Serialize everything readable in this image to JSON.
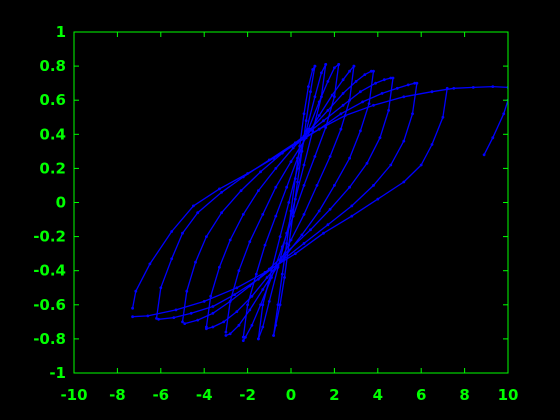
{
  "colors": {
    "background": "#000000",
    "axes": "#00ff00",
    "series": "#0000ff"
  },
  "chart_data": {
    "type": "line",
    "title": "",
    "xlabel": "",
    "ylabel": "",
    "xlim": [
      -10,
      10
    ],
    "ylim": [
      -1,
      1
    ],
    "xticks": [
      -10,
      -8,
      -6,
      -4,
      -2,
      0,
      2,
      4,
      6,
      8,
      10
    ],
    "yticks": [
      -1,
      -0.8,
      -0.6,
      -0.4,
      -0.2,
      0,
      0.2,
      0.4,
      0.6,
      0.8,
      1
    ],
    "xtick_labels": [
      "-10",
      "-8",
      "-6",
      "-4",
      "-2",
      "0",
      "2",
      "4",
      "6",
      "8",
      "10"
    ],
    "ytick_labels": [
      "-1",
      "-0.8",
      "-0.6",
      "-0.4",
      "-0.2",
      "0",
      "0.2",
      "0.4",
      "0.6",
      "0.8",
      "1"
    ],
    "grid": false,
    "legend": "none",
    "markers": true,
    "series": [
      {
        "values_note_free": true,
        "x": [
          -7.3,
          -7.15,
          -6.5,
          -5.5,
          -4.5,
          -3.3,
          -2.0,
          -0.8,
          0.3,
          1.3,
          2.5,
          3.8,
          5.2,
          6.5,
          7.5,
          8.4,
          9.3,
          10.0
        ],
        "y": [
          -0.62,
          -0.52,
          -0.36,
          -0.17,
          -0.02,
          0.08,
          0.17,
          0.26,
          0.35,
          0.43,
          0.51,
          0.57,
          0.62,
          0.65,
          0.67,
          0.675,
          0.68,
          0.675
        ]
      },
      {
        "x": [
          8.9,
          9.3,
          9.8,
          10.0
        ],
        "y": [
          0.28,
          0.38,
          0.52,
          0.6
        ]
      },
      {
        "x": [
          7.2,
          7.0,
          6.5,
          6.0,
          5.2,
          4.0,
          2.8,
          1.5,
          0.2,
          -1.2,
          -2.5,
          -4.0,
          -5.3,
          -6.6,
          -7.3
        ],
        "y": [
          0.67,
          0.5,
          0.34,
          0.22,
          0.12,
          0.02,
          -0.08,
          -0.18,
          -0.3,
          -0.41,
          -0.5,
          -0.58,
          -0.63,
          -0.665,
          -0.67
        ]
      },
      {
        "x": [
          -6.2,
          -6.0,
          -5.5,
          -5.0,
          -4.3,
          -3.2,
          -2.2,
          -1.0,
          0.2,
          1.3,
          2.3,
          3.3,
          4.2,
          4.9,
          5.4,
          5.7
        ],
        "y": [
          -0.68,
          -0.5,
          -0.33,
          -0.18,
          -0.06,
          0.06,
          0.15,
          0.25,
          0.35,
          0.43,
          0.52,
          0.59,
          0.64,
          0.67,
          0.69,
          0.7
        ]
      },
      {
        "x": [
          5.8,
          5.6,
          5.2,
          4.6,
          3.8,
          2.8,
          1.7,
          0.6,
          -0.5,
          -1.5,
          -2.6,
          -3.6,
          -4.6,
          -5.4,
          -6.1
        ],
        "y": [
          0.7,
          0.52,
          0.36,
          0.22,
          0.1,
          -0.02,
          -0.13,
          -0.24,
          -0.35,
          -0.45,
          -0.54,
          -0.61,
          -0.65,
          -0.675,
          -0.685
        ]
      },
      {
        "x": [
          -5.0,
          -4.8,
          -4.4,
          -3.9,
          -3.2,
          -2.3,
          -1.4,
          -0.4,
          0.6,
          1.5,
          2.4,
          3.2,
          3.9,
          4.3,
          4.6
        ],
        "y": [
          -0.7,
          -0.52,
          -0.35,
          -0.2,
          -0.06,
          0.07,
          0.18,
          0.29,
          0.39,
          0.48,
          0.57,
          0.65,
          0.7,
          0.72,
          0.73
        ]
      },
      {
        "x": [
          4.7,
          4.5,
          4.1,
          3.5,
          2.7,
          1.8,
          0.9,
          -0.1,
          -1.0,
          -1.9,
          -2.8,
          -3.6,
          -4.3,
          -4.9
        ],
        "y": [
          0.73,
          0.54,
          0.38,
          0.23,
          0.09,
          -0.04,
          -0.16,
          -0.28,
          -0.39,
          -0.49,
          -0.58,
          -0.65,
          -0.69,
          -0.71
        ]
      },
      {
        "x": [
          -3.9,
          -3.7,
          -3.3,
          -2.8,
          -2.2,
          -1.5,
          -0.7,
          0.1,
          0.9,
          1.7,
          2.4,
          3.0,
          3.4,
          3.7
        ],
        "y": [
          -0.73,
          -0.55,
          -0.38,
          -0.22,
          -0.07,
          0.07,
          0.2,
          0.32,
          0.43,
          0.54,
          0.64,
          0.71,
          0.75,
          0.77
        ]
      },
      {
        "x": [
          3.8,
          3.6,
          3.2,
          2.7,
          2.0,
          1.3,
          0.5,
          -0.3,
          -1.1,
          -1.8,
          -2.5,
          -3.1,
          -3.6,
          -3.9
        ],
        "y": [
          0.77,
          0.58,
          0.42,
          0.26,
          0.1,
          -0.05,
          -0.19,
          -0.32,
          -0.44,
          -0.55,
          -0.64,
          -0.7,
          -0.73,
          -0.74
        ]
      },
      {
        "x": [
          -3.0,
          -2.8,
          -2.4,
          -1.9,
          -1.3,
          -0.7,
          0.0,
          0.7,
          1.3,
          1.9,
          2.4,
          2.7,
          2.9
        ],
        "y": [
          -0.76,
          -0.58,
          -0.4,
          -0.23,
          -0.07,
          0.09,
          0.24,
          0.38,
          0.51,
          0.63,
          0.72,
          0.77,
          0.8
        ]
      },
      {
        "x": [
          2.9,
          2.7,
          2.3,
          1.8,
          1.2,
          0.6,
          0.0,
          -0.6,
          -1.3,
          -1.9,
          -2.4,
          -2.8,
          -3.0
        ],
        "y": [
          0.8,
          0.6,
          0.43,
          0.27,
          0.1,
          -0.07,
          -0.22,
          -0.37,
          -0.51,
          -0.63,
          -0.72,
          -0.77,
          -0.78
        ]
      },
      {
        "x": [
          -2.2,
          -2.0,
          -1.6,
          -1.2,
          -0.7,
          -0.2,
          0.3,
          0.8,
          1.3,
          1.7,
          2.0,
          2.2
        ],
        "y": [
          -0.79,
          -0.6,
          -0.42,
          -0.25,
          -0.08,
          0.09,
          0.26,
          0.43,
          0.59,
          0.71,
          0.79,
          0.81
        ]
      },
      {
        "x": [
          2.2,
          2.0,
          1.6,
          1.1,
          0.6,
          0.1,
          -0.4,
          -0.9,
          -1.4,
          -1.8,
          -2.1,
          -2.2
        ],
        "y": [
          0.81,
          0.62,
          0.44,
          0.27,
          0.1,
          -0.08,
          -0.26,
          -0.44,
          -0.6,
          -0.72,
          -0.79,
          -0.81
        ]
      },
      {
        "x": [
          -1.5,
          -1.3,
          -0.9,
          -0.5,
          -0.1,
          0.3,
          0.7,
          1.1,
          1.4,
          1.6
        ],
        "y": [
          -0.8,
          -0.6,
          -0.4,
          -0.2,
          0.0,
          0.2,
          0.42,
          0.62,
          0.76,
          0.81
        ]
      },
      {
        "x": [
          1.6,
          1.4,
          1.0,
          0.6,
          0.2,
          -0.2,
          -0.6,
          -1.0,
          -1.3,
          -1.5
        ],
        "y": [
          0.81,
          0.62,
          0.42,
          0.22,
          0.02,
          -0.18,
          -0.38,
          -0.58,
          -0.73,
          -0.8
        ]
      },
      {
        "x": [
          -0.8,
          -0.6,
          -0.4,
          -0.2,
          0.0,
          0.2,
          0.4,
          0.6,
          0.8,
          1.0,
          1.1
        ],
        "y": [
          -0.78,
          -0.6,
          -0.42,
          -0.24,
          -0.05,
          0.14,
          0.33,
          0.52,
          0.68,
          0.78,
          0.8
        ]
      },
      {
        "x": [
          1.1,
          0.9,
          0.7,
          0.5,
          0.3,
          0.1,
          -0.1,
          -0.3,
          -0.5,
          -0.7,
          -0.8
        ],
        "y": [
          0.8,
          0.65,
          0.48,
          0.3,
          0.12,
          -0.06,
          -0.25,
          -0.44,
          -0.6,
          -0.72,
          -0.78
        ]
      }
    ]
  }
}
